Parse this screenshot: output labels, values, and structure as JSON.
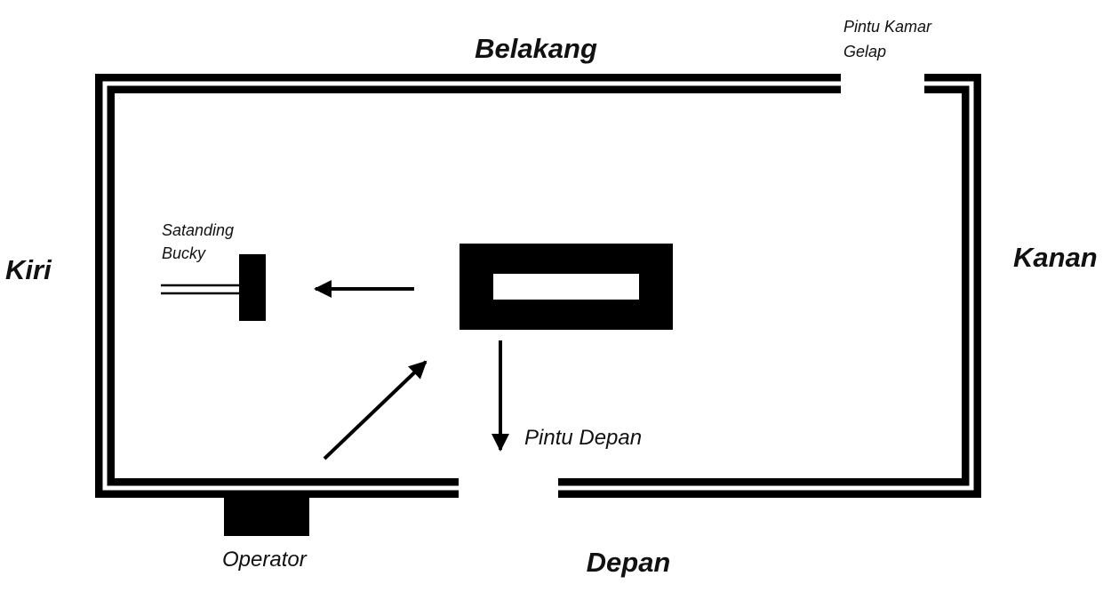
{
  "labels": {
    "back": "Belakang",
    "front": "Depan",
    "left": "Kiri",
    "right": "Kanan",
    "darkroom_door_line1": "Pintu Kamar",
    "darkroom_door_line2": "Gelap",
    "bucky_line1": "Satanding",
    "bucky_line2": "Bucky",
    "front_door": "Pintu Depan",
    "operator": "Operator"
  },
  "colors": {
    "wall": "#000000",
    "background": "#ffffff"
  }
}
